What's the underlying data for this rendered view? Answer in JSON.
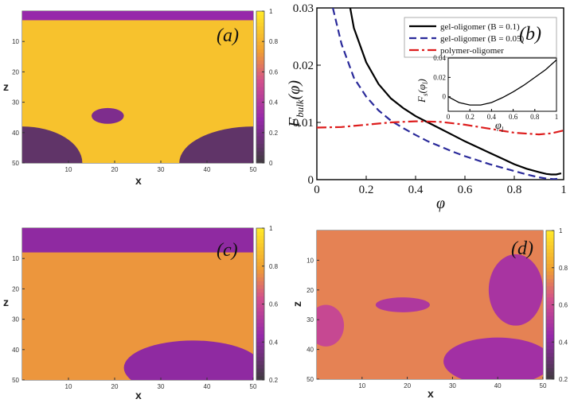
{
  "chart_data": [
    {
      "type": "heatmap",
      "panel_label": "(a)",
      "title": "",
      "xlabel": "x",
      "ylabel": "z",
      "xlim": [
        0,
        50
      ],
      "ylim": [
        50,
        0
      ],
      "x_ticks": [
        "10",
        "20",
        "30",
        "40",
        "50"
      ],
      "y_ticks": [
        "10",
        "20",
        "30",
        "40",
        "50"
      ],
      "colorbar": {
        "range": [
          0,
          1
        ],
        "ticks": [
          "0",
          "0.2",
          "0.4",
          "0.6",
          "0.8",
          "1"
        ]
      },
      "field": {
        "background_value": 0.87,
        "features": [
          {
            "kind": "band",
            "z_range": [
              0,
              3
            ],
            "value": 0.3
          },
          {
            "kind": "droplet",
            "center": [
              18.5,
              34.5
            ],
            "radius": [
              3.5,
              2.6
            ],
            "value": 0.22
          },
          {
            "kind": "quarter-disc",
            "corner": "bottom-left",
            "center": [
              0,
              50
            ],
            "radius": [
              13,
              12
            ],
            "value": 0.12
          },
          {
            "kind": "quarter-disc",
            "corner": "bottom-right",
            "center": [
              50,
              50
            ],
            "radius": [
              16,
              12
            ],
            "value": 0.12
          }
        ]
      }
    },
    {
      "type": "line",
      "panel_label": "(b)",
      "title": "",
      "xlabel": "φ",
      "ylabel": "F_bulk(φ)",
      "xlim": [
        0,
        1
      ],
      "ylim": [
        0,
        0.03
      ],
      "x_ticks": [
        "0",
        "0.2",
        "0.4",
        "0.6",
        "0.8",
        "1"
      ],
      "y_ticks": [
        "0",
        "0.01",
        "0.02",
        "0.03"
      ],
      "legend_position": "top-right",
      "series": [
        {
          "name": "gel-oligomer (B = 0.1)",
          "color": "#000000",
          "dash": "solid",
          "x": [
            0.135,
            0.15,
            0.2,
            0.25,
            0.3,
            0.35,
            0.4,
            0.45,
            0.5,
            0.55,
            0.6,
            0.65,
            0.7,
            0.75,
            0.8,
            0.85,
            0.9,
            0.93,
            0.95,
            0.97,
            0.99
          ],
          "y": [
            0.03,
            0.0265,
            0.0205,
            0.0167,
            0.0142,
            0.0125,
            0.0111,
            0.01,
            0.0089,
            0.0078,
            0.0067,
            0.0057,
            0.0047,
            0.0037,
            0.0027,
            0.0019,
            0.0013,
            0.001,
            0.0009,
            0.0009,
            0.0011
          ]
        },
        {
          "name": "gel-oligomer (B = 0.05)",
          "color": "#2a2a9a",
          "dash": "dashed",
          "x": [
            0.065,
            0.1,
            0.15,
            0.2,
            0.25,
            0.3,
            0.35,
            0.4,
            0.45,
            0.5,
            0.55,
            0.6,
            0.65,
            0.7,
            0.75,
            0.8,
            0.85,
            0.9,
            0.93,
            0.96,
            0.99
          ],
          "y": [
            0.03,
            0.0237,
            0.0178,
            0.0145,
            0.0121,
            0.0103,
            0.009,
            0.0078,
            0.0067,
            0.0058,
            0.0049,
            0.0041,
            0.0034,
            0.0027,
            0.0021,
            0.0015,
            0.0009,
            0.0004,
            0.0002,
            0.0001,
            0.0002
          ]
        },
        {
          "name": "polymer-oligomer",
          "color": "#dd1c1c",
          "dash": "dashdot",
          "x": [
            0.0,
            0.1,
            0.2,
            0.3,
            0.4,
            0.5,
            0.6,
            0.7,
            0.8,
            0.9,
            0.95,
            1.0
          ],
          "y": [
            0.0091,
            0.0092,
            0.0096,
            0.01,
            0.0102,
            0.0101,
            0.0096,
            0.0089,
            0.0082,
            0.0079,
            0.0081,
            0.0086
          ]
        }
      ],
      "inset": {
        "xlabel": "φ_l",
        "ylabel": "F_s(φ_l)",
        "xlim": [
          0,
          1
        ],
        "ylim": [
          -0.015,
          0.04
        ],
        "x_ticks": [
          "0",
          "0.2",
          "0.4",
          "0.6",
          "0.8",
          "1"
        ],
        "y_ticks": [
          "0",
          "0.02",
          "0.04"
        ],
        "series": [
          {
            "name": "F_s",
            "color": "#000000",
            "x": [
              0.0,
              0.1,
              0.2,
              0.3,
              0.4,
              0.5,
              0.6,
              0.7,
              0.8,
              0.9,
              1.0
            ],
            "y": [
              0.0,
              -0.006,
              -0.0085,
              -0.0085,
              -0.006,
              -0.001,
              0.005,
              0.012,
              0.02,
              0.028,
              0.038
            ]
          }
        ]
      }
    },
    {
      "type": "heatmap",
      "panel_label": "(c)",
      "title": "",
      "xlabel": "x",
      "ylabel": "z",
      "xlim": [
        0,
        50
      ],
      "ylim": [
        50,
        0
      ],
      "x_ticks": [
        "10",
        "20",
        "30",
        "40",
        "50"
      ],
      "y_ticks": [
        "10",
        "20",
        "30",
        "40",
        "50"
      ],
      "colorbar": {
        "range": [
          0.2,
          1
        ],
        "ticks": [
          "0.2",
          "0.4",
          "0.6",
          "0.8",
          "1"
        ]
      },
      "field": {
        "background_value": 0.78,
        "features": [
          {
            "kind": "band",
            "z_range": [
              0,
              8
            ],
            "value": 0.42
          },
          {
            "kind": "blob",
            "center": [
              37,
              46
            ],
            "radius": [
              15,
              9
            ],
            "value": 0.42
          }
        ]
      }
    },
    {
      "type": "heatmap",
      "panel_label": "(d)",
      "title": "",
      "xlabel": "x",
      "ylabel": "z",
      "xlim": [
        0,
        50
      ],
      "ylim": [
        50,
        0
      ],
      "x_ticks": [
        "10",
        "20",
        "30",
        "40",
        "50"
      ],
      "y_ticks": [
        "10",
        "20",
        "30",
        "40",
        "50"
      ],
      "colorbar": {
        "range": [
          0.2,
          1
        ],
        "ticks": [
          "0.2",
          "0.4",
          "0.6",
          "0.8",
          "1"
        ]
      },
      "field": {
        "background_value": 0.74,
        "features": [
          {
            "kind": "droplet",
            "center": [
              19,
              25
            ],
            "radius": [
              6,
              2.5
            ],
            "value": 0.52
          },
          {
            "kind": "blob",
            "center": [
              44,
              20
            ],
            "radius": [
              6,
              12
            ],
            "value": 0.5
          },
          {
            "kind": "blob",
            "center": [
              40,
              44
            ],
            "radius": [
              12,
              8
            ],
            "value": 0.48
          },
          {
            "kind": "blob",
            "center": [
              2,
              32
            ],
            "radius": [
              4,
              7
            ],
            "value": 0.6
          }
        ]
      }
    }
  ]
}
